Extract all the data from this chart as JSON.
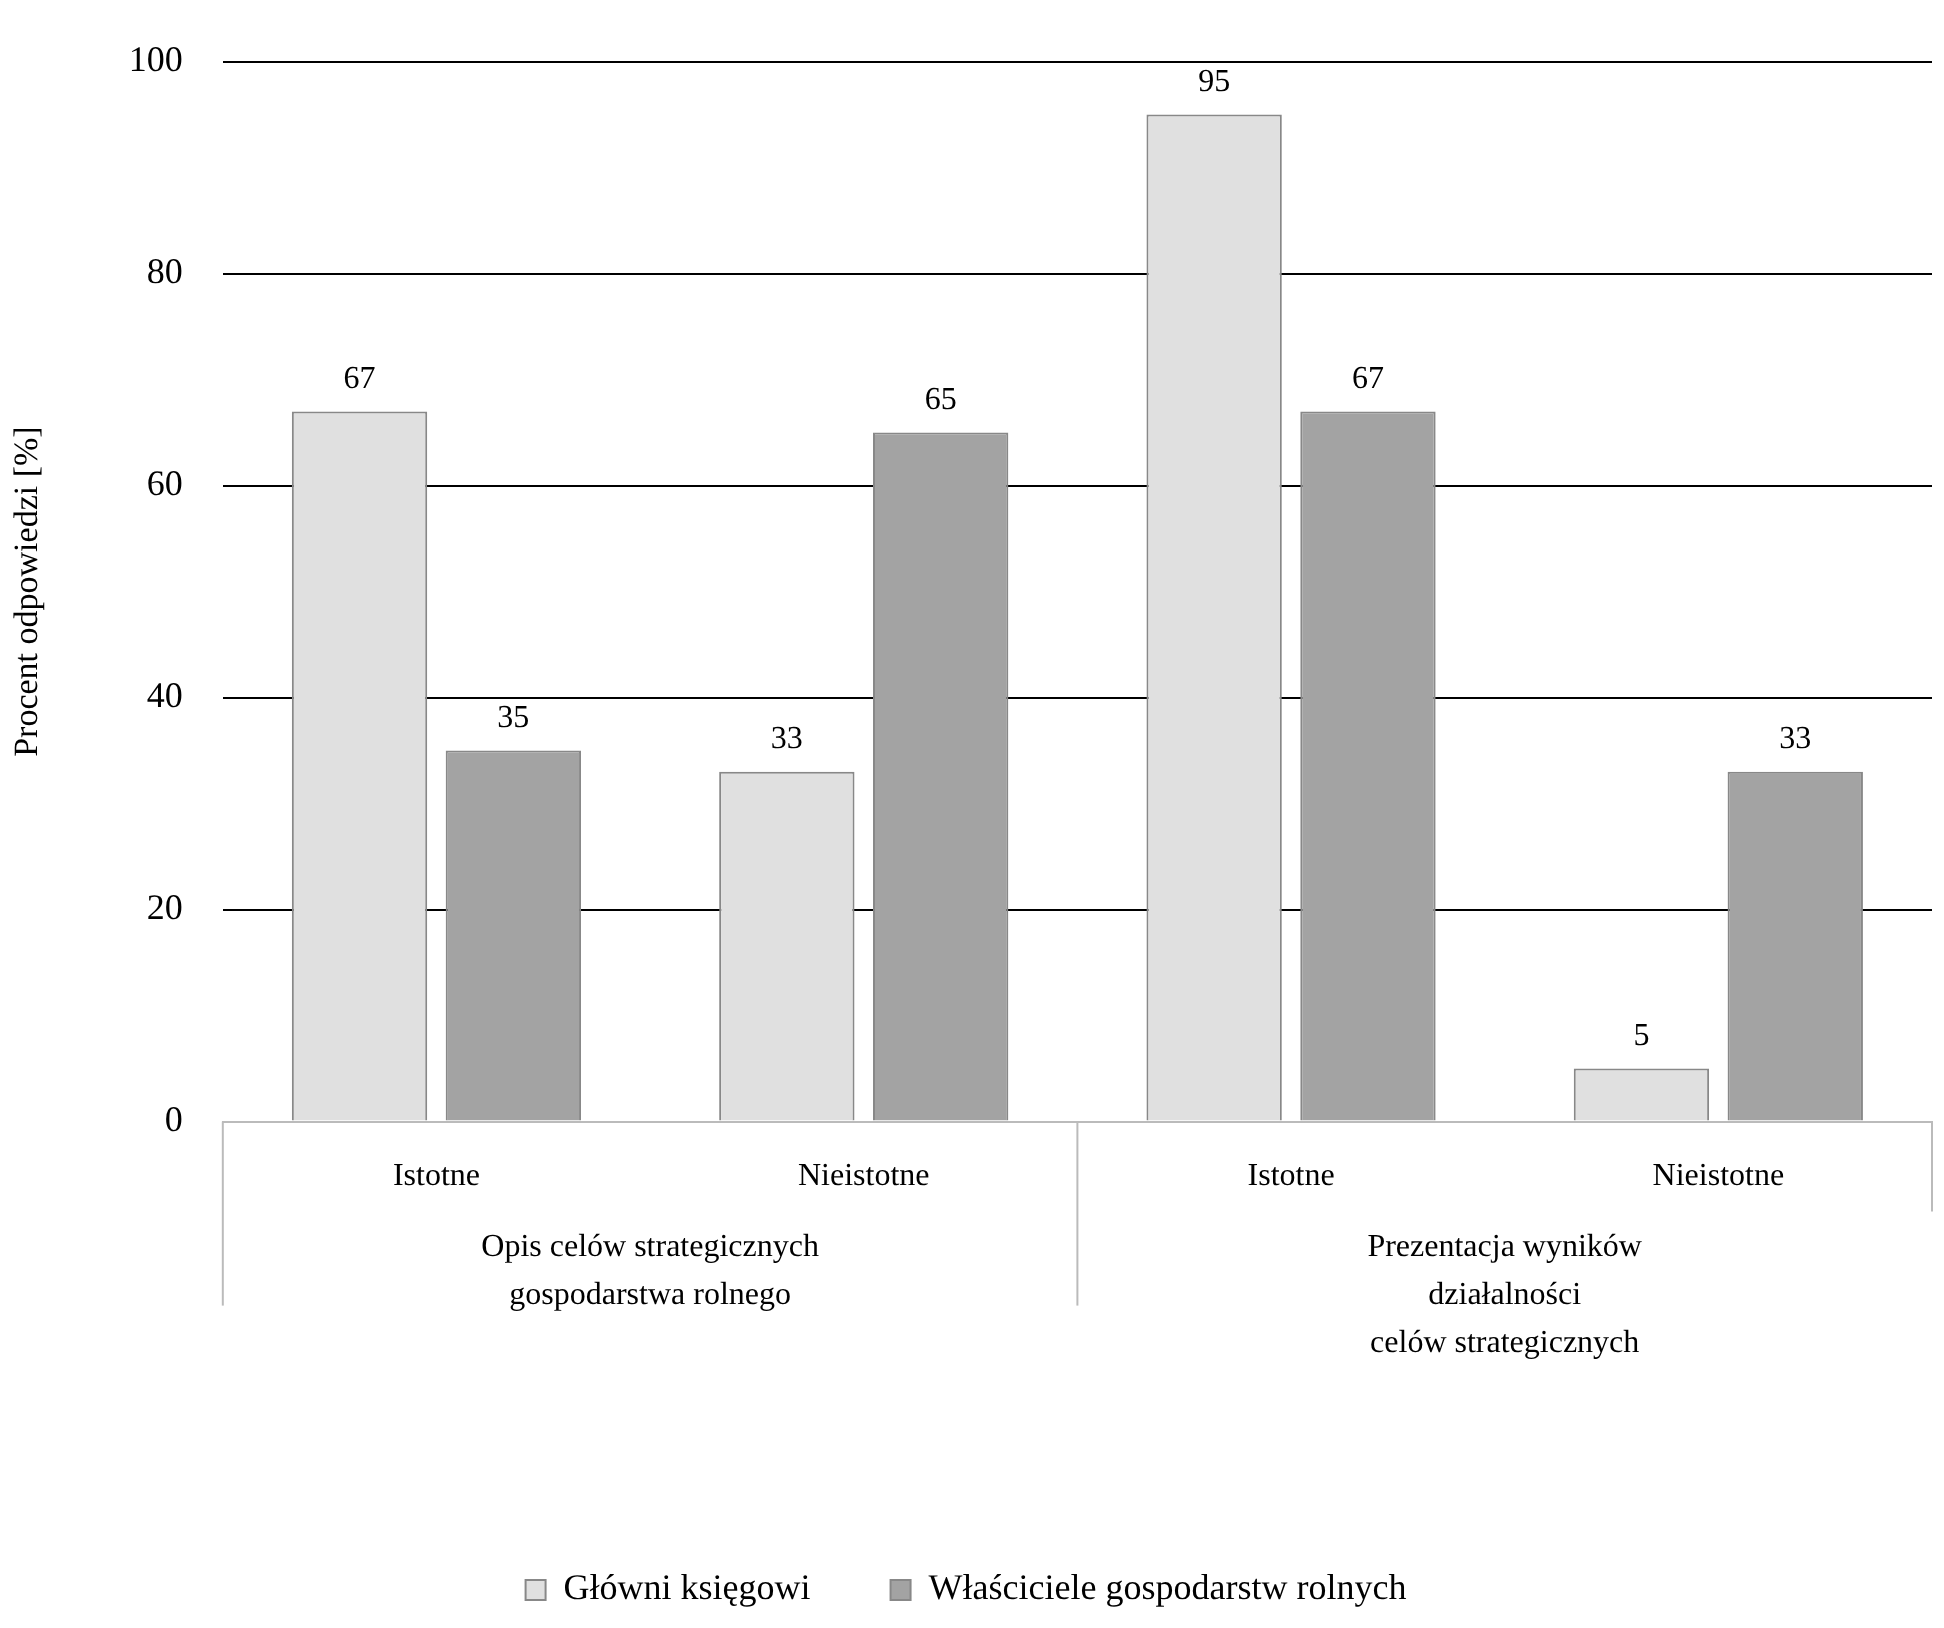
{
  "chart_data": {
    "type": "bar",
    "ylabel": "Procent odpowiedzi [%]",
    "categories": [
      "Istotne",
      "Nieistotne",
      "Istotne",
      "Nieistotne"
    ],
    "series": [
      {
        "name": "Główni księgowi",
        "color": "#e0e0e0",
        "values": [
          67,
          33,
          95,
          5
        ]
      },
      {
        "name": "Właściciele gospodarstw rolnych",
        "color": "#a3a3a3",
        "values": [
          35,
          65,
          67,
          33
        ]
      }
    ],
    "ylim": [
      0,
      100
    ],
    "yticks": [
      0,
      20,
      40,
      60,
      80,
      100
    ],
    "grid": "y",
    "legend": "bottom",
    "data_labels": true,
    "annotations": [
      "Opis celów strategicznych\ngospodarstwa rolnego",
      "Prezentacja wyników\ndziałalności\ncelów strategicznych"
    ]
  }
}
